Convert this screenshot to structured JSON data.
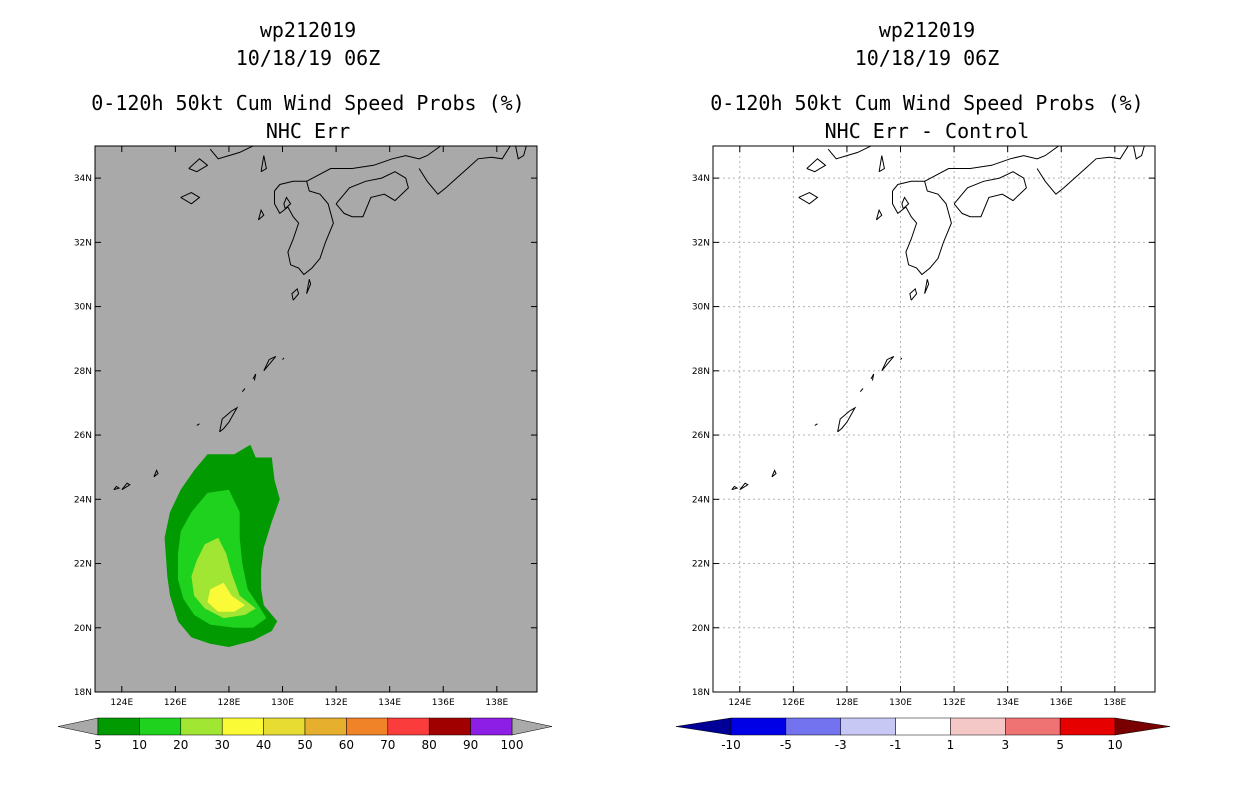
{
  "chart_data": [
    {
      "type": "heatmap",
      "name": "left-panel",
      "title_lines": [
        "wp212019",
        "10/18/19 06Z",
        "0-120h 50kt Cum Wind Speed Probs (%)",
        "NHC Err"
      ],
      "xlabel": "",
      "ylabel": "",
      "xlim": [
        123,
        139.5
      ],
      "ylim": [
        18,
        35
      ],
      "x_ticks": [
        "124E",
        "126E",
        "128E",
        "130E",
        "132E",
        "134E",
        "136E",
        "138E"
      ],
      "y_ticks": [
        "18N",
        "20N",
        "22N",
        "24N",
        "26N",
        "28N",
        "30N",
        "32N",
        "34N"
      ],
      "background": "#a9a9a9",
      "grid": false,
      "colorbar": {
        "labels": [
          "5",
          "10",
          "20",
          "30",
          "40",
          "50",
          "60",
          "70",
          "80",
          "90",
          "100"
        ],
        "colors": [
          "#019a01",
          "#1ed21e",
          "#a0e632",
          "#fafa37",
          "#e6dc32",
          "#e6af2d",
          "#f08228",
          "#fa3c3c",
          "#a00000",
          "#8c1ee6"
        ],
        "under_color": "#a9a9a9",
        "over_color": "#a9a9a9"
      },
      "contours": [
        {
          "level": "5-10",
          "color": "#019a01",
          "polygon": [
            [
              128.0,
              19.4
            ],
            [
              128.9,
              19.6
            ],
            [
              129.6,
              19.9
            ],
            [
              129.8,
              20.2
            ],
            [
              129.3,
              20.7
            ],
            [
              129.2,
              21.2
            ],
            [
              129.2,
              21.8
            ],
            [
              129.3,
              22.5
            ],
            [
              129.6,
              23.3
            ],
            [
              129.9,
              24.0
            ],
            [
              129.7,
              24.6
            ],
            [
              129.6,
              25.3
            ],
            [
              129.0,
              25.3
            ],
            [
              128.8,
              25.7
            ],
            [
              128.2,
              25.4
            ],
            [
              127.2,
              25.4
            ],
            [
              126.7,
              24.9
            ],
            [
              126.2,
              24.3
            ],
            [
              125.8,
              23.6
            ],
            [
              125.6,
              22.8
            ],
            [
              125.7,
              21.6
            ],
            [
              125.8,
              21.0
            ],
            [
              126.1,
              20.2
            ],
            [
              126.6,
              19.7
            ],
            [
              127.3,
              19.5
            ]
          ]
        },
        {
          "level": "10-20",
          "color": "#1ed21e",
          "polygon": [
            [
              128.2,
              20.0
            ],
            [
              128.9,
              20.0
            ],
            [
              129.4,
              20.3
            ],
            [
              129.1,
              20.7
            ],
            [
              128.7,
              21.2
            ],
            [
              128.5,
              22.0
            ],
            [
              128.4,
              22.8
            ],
            [
              128.4,
              23.6
            ],
            [
              128.0,
              24.3
            ],
            [
              127.2,
              24.2
            ],
            [
              126.6,
              23.6
            ],
            [
              126.2,
              23.0
            ],
            [
              126.1,
              22.3
            ],
            [
              126.1,
              21.5
            ],
            [
              126.3,
              20.9
            ],
            [
              126.7,
              20.4
            ],
            [
              127.3,
              20.1
            ]
          ]
        },
        {
          "level": "20-30",
          "color": "#a0e632",
          "polygon": [
            [
              127.8,
              20.3
            ],
            [
              128.6,
              20.4
            ],
            [
              129.0,
              20.6
            ],
            [
              128.4,
              21.0
            ],
            [
              128.1,
              21.7
            ],
            [
              127.9,
              22.3
            ],
            [
              127.6,
              22.8
            ],
            [
              127.1,
              22.6
            ],
            [
              126.8,
              22.1
            ],
            [
              126.6,
              21.6
            ],
            [
              126.7,
              21.0
            ],
            [
              127.1,
              20.6
            ]
          ]
        },
        {
          "level": "30-40",
          "color": "#fafa37",
          "polygon": [
            [
              127.6,
              20.5
            ],
            [
              128.2,
              20.5
            ],
            [
              128.6,
              20.7
            ],
            [
              128.1,
              21.0
            ],
            [
              127.8,
              21.4
            ],
            [
              127.3,
              21.2
            ],
            [
              127.2,
              20.8
            ]
          ]
        }
      ]
    },
    {
      "type": "heatmap",
      "name": "right-panel",
      "title_lines": [
        "wp212019",
        "10/18/19 06Z",
        "0-120h 50kt Cum Wind Speed Probs (%)",
        "NHC Err - Control"
      ],
      "xlabel": "",
      "ylabel": "",
      "xlim": [
        123,
        139.5
      ],
      "ylim": [
        18,
        35
      ],
      "x_ticks": [
        "124E",
        "126E",
        "128E",
        "130E",
        "132E",
        "134E",
        "136E",
        "138E"
      ],
      "y_ticks": [
        "18N",
        "20N",
        "22N",
        "24N",
        "26N",
        "28N",
        "30N",
        "32N",
        "34N"
      ],
      "background": "#ffffff",
      "grid": true,
      "colorbar": {
        "labels": [
          "-10",
          "-5",
          "-3",
          "-1",
          "1",
          "3",
          "5",
          "10"
        ],
        "colors": [
          "#0000e6",
          "#7373f0",
          "#c8c8f5",
          "#ffffff",
          "#f5c8c8",
          "#f07373",
          "#e60000"
        ],
        "under_color": "#000096",
        "over_color": "#780000"
      },
      "contours": []
    }
  ]
}
